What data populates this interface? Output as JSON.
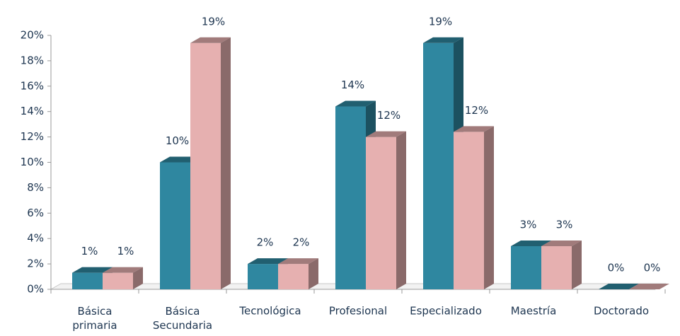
{
  "chart_data": {
    "type": "bar3d",
    "categories": [
      "Básica primaria",
      "Básica Secundaria",
      "Tecnológica",
      "Profesional",
      "Especializado",
      "Maestría",
      "Doctorado"
    ],
    "series": [
      {
        "color": "#2f87a0",
        "values": [
          1.3,
          10.0,
          2.0,
          14.4,
          19.4,
          3.4,
          0
        ],
        "value_labels": [
          "1%",
          "10%",
          "2%",
          "14%",
          "19%",
          "3%",
          "0%"
        ]
      },
      {
        "color": "#e6b0b0",
        "values": [
          1.3,
          19.4,
          2.0,
          12.0,
          12.4,
          3.4,
          0
        ],
        "value_labels": [
          "1%",
          "19%",
          "2%",
          "12%",
          "12%",
          "3%",
          "0%"
        ]
      }
    ],
    "ylim": [
      0,
      20
    ],
    "yticks": [
      {
        "value": 0,
        "label": "0%"
      },
      {
        "value": 2,
        "label": "2%"
      },
      {
        "value": 4,
        "label": "4%"
      },
      {
        "value": 6,
        "label": "6%"
      },
      {
        "value": 8,
        "label": "8%"
      },
      {
        "value": 10,
        "label": "10%"
      },
      {
        "value": 12,
        "label": "12%"
      },
      {
        "value": 14,
        "label": "14%"
      },
      {
        "value": 16,
        "label": "16%"
      },
      {
        "value": 18,
        "label": "18%"
      },
      {
        "value": 20,
        "label": "20%"
      }
    ]
  }
}
